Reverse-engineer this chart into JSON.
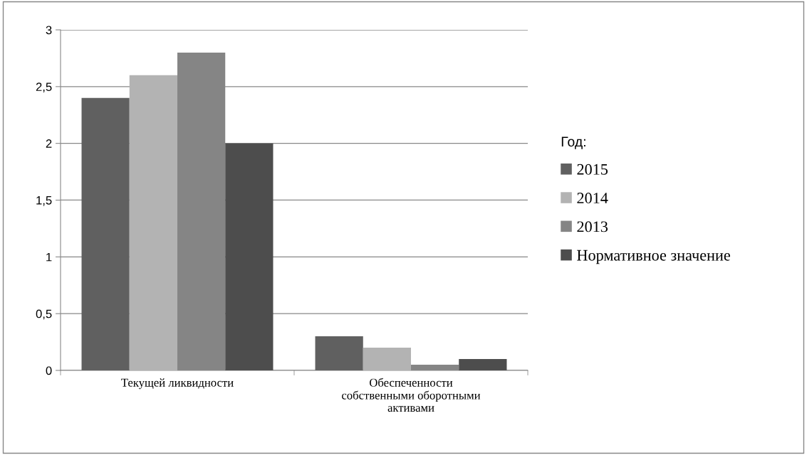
{
  "chart_data": {
    "type": "bar",
    "categories": [
      "Текущей ликвидности",
      "Обеспеченности\nсобственными оборотными\nактивами"
    ],
    "series": [
      {
        "name": "2015",
        "color": "#606060",
        "values": [
          2.4,
          0.3
        ]
      },
      {
        "name": "2014",
        "color": "#b3b3b3",
        "values": [
          2.6,
          0.2
        ]
      },
      {
        "name": "2013",
        "color": "#858585",
        "values": [
          2.8,
          0.05
        ]
      },
      {
        "name": "Нормативное значение",
        "color": "#4d4d4d",
        "values": [
          2.0,
          0.1
        ]
      }
    ],
    "legend_title": "Год:",
    "legend": "right",
    "grid": "y",
    "ylim": [
      0,
      3
    ],
    "yticks": [
      0,
      {
        "value": 0.5,
        "label": "0,5"
      },
      1,
      {
        "value": 1.5,
        "label": "1,5"
      },
      2,
      {
        "value": 2.5,
        "label": "2,5"
      },
      3
    ]
  }
}
